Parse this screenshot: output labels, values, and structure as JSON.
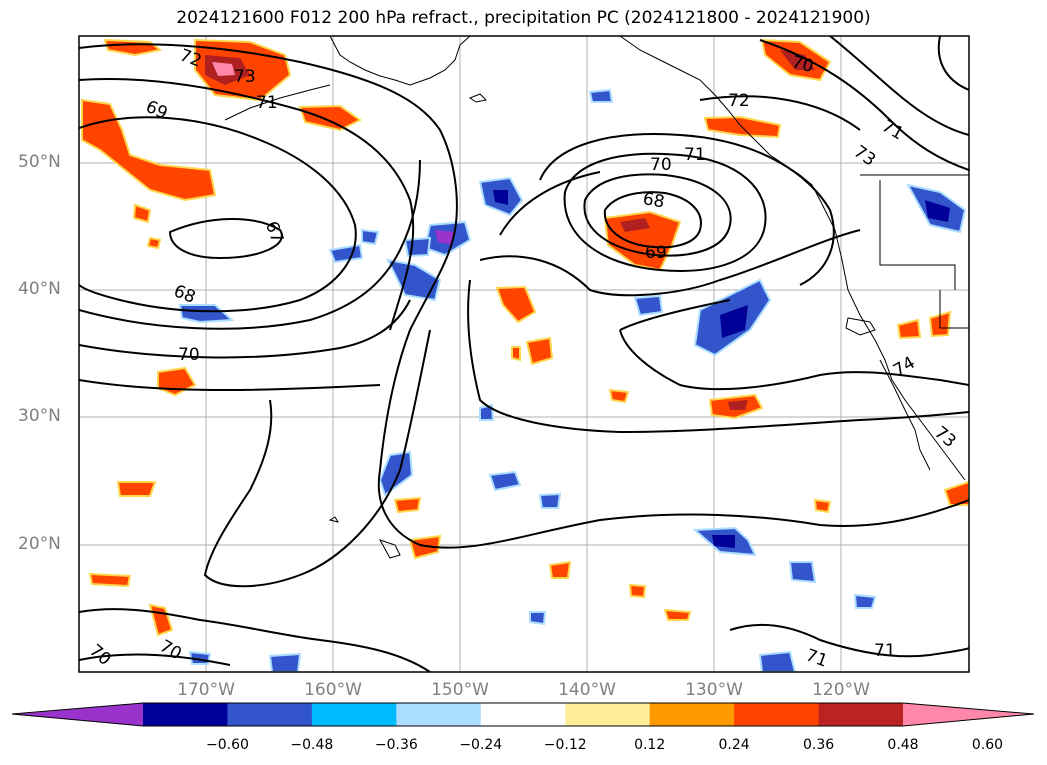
{
  "title": "2024121600 F012 200 hPa refract., precipitation PC (2024121800 - 2024121900)",
  "lat_labels": [
    "50°N",
    "40°N",
    "30°N",
    "20°N"
  ],
  "lon_labels": [
    "170°W",
    "160°W",
    "150°W",
    "140°W",
    "130°W",
    "120°W"
  ],
  "contour_labels": [
    "72",
    "73",
    "71",
    "69",
    "67",
    "68",
    "70",
    "72",
    "71",
    "73",
    "70",
    "71",
    "68",
    "69",
    "70",
    "74",
    "73",
    "70",
    "71",
    "71",
    "70"
  ],
  "colorbar": {
    "ticks": [
      "−0.60",
      "−0.48",
      "−0.36",
      "−0.24",
      "−0.12",
      "0.12",
      "0.24",
      "0.36",
      "0.48",
      "0.60"
    ],
    "colors": [
      "#9933cc",
      "#000099",
      "#3355cc",
      "#00bbff",
      "#aaddff",
      "#ffffff",
      "#ffee99",
      "#ff9900",
      "#ff4400",
      "#bb2222",
      "#ff88aa"
    ]
  },
  "shading_colors": {
    "pos_outer": "#ffe680",
    "pos_mid": "#ff4400",
    "pos_dark": "#b02020",
    "pos_max": "#ff88aa",
    "neg_outer": "#aaddff",
    "neg_mid": "#00bbff",
    "neg_dark": "#3355cc",
    "neg_max": "#000099"
  }
}
